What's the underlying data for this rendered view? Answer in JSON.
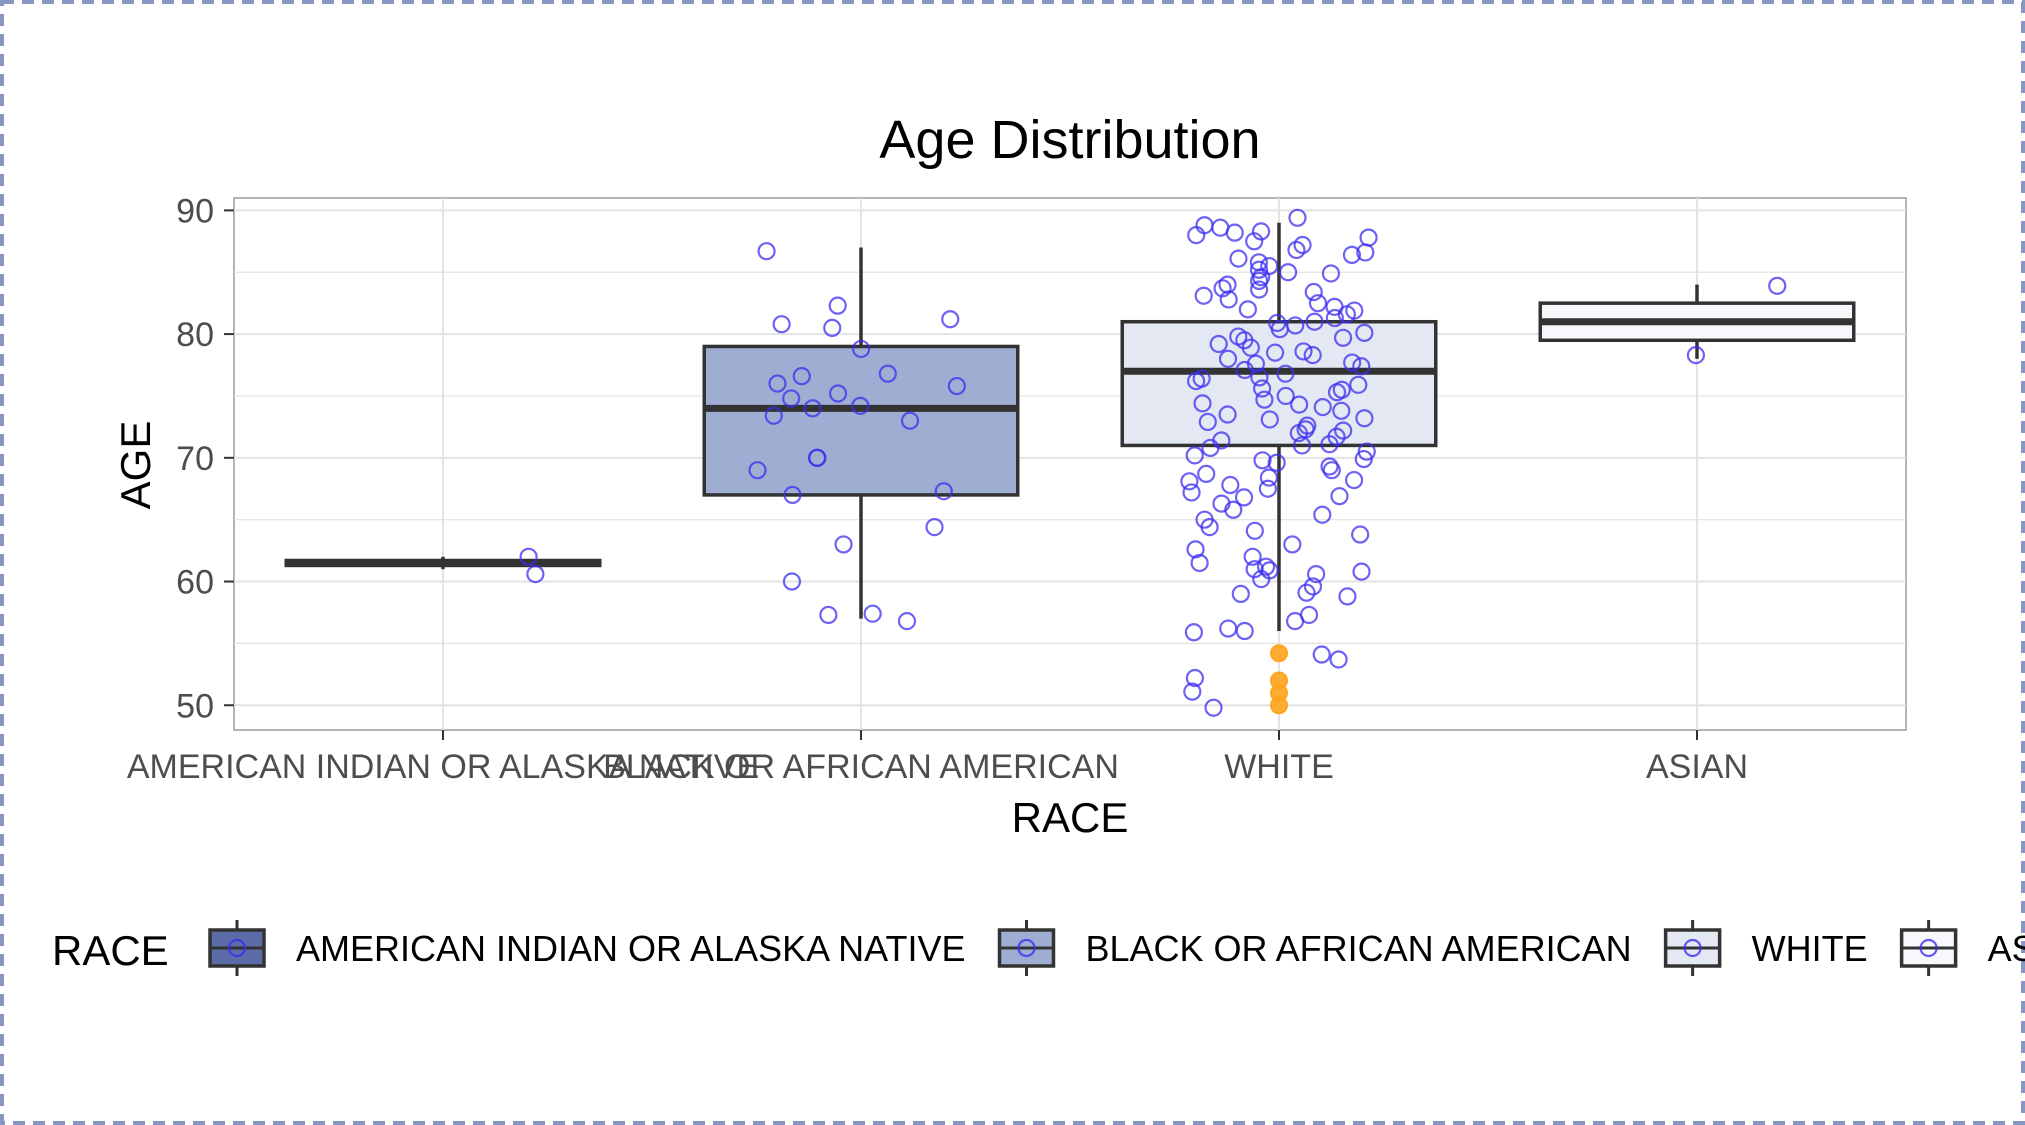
{
  "chart_data": {
    "type": "box",
    "title": "Age Distribution",
    "xlabel": "RACE",
    "ylabel": "AGE",
    "ylim": [
      48,
      91
    ],
    "yticks": [
      50,
      60,
      70,
      80,
      90
    ],
    "grid": true,
    "legend_position": "bottom",
    "legend_title": "RACE",
    "categories": [
      "AMERICAN INDIAN OR ALASKA NATIVE",
      "BLACK OR AFRICAN AMERICAN",
      "WHITE",
      "ASIAN"
    ],
    "colors": {
      "box_fills": [
        "#5b6ca8",
        "#9fadd2",
        "#e4e8f3",
        "#f7f8fb"
      ],
      "box_stroke": "#333333",
      "point": "#3b2ef0",
      "outlier": "#ffa41c",
      "grid": "#e3e3e3",
      "panel_border": "#b3b3b3",
      "frame_border": "#8797c2"
    },
    "boxes": [
      {
        "category": "AMERICAN INDIAN OR ALASKA NATIVE",
        "lower_whisker": 61.0,
        "q1": 61.3,
        "median": 61.5,
        "q3": 61.7,
        "upper_whisker": 62.0
      },
      {
        "category": "BLACK OR AFRICAN AMERICAN",
        "lower_whisker": 57.0,
        "q1": 67.0,
        "median": 74.0,
        "q3": 79.0,
        "upper_whisker": 87.0
      },
      {
        "category": "WHITE",
        "lower_whisker": 56.0,
        "q1": 71.0,
        "median": 77.0,
        "q3": 81.0,
        "upper_whisker": 89.0
      },
      {
        "category": "ASIAN",
        "lower_whisker": 78.0,
        "q1": 79.5,
        "median": 81.0,
        "q3": 82.5,
        "upper_whisker": 84.0
      }
    ],
    "points": [
      {
        "category": "AMERICAN INDIAN OR ALASKA NATIVE",
        "values": [
          62.0,
          60.6
        ]
      },
      {
        "category": "BLACK OR AFRICAN AMERICAN",
        "values": [
          86.7,
          82.3,
          81.2,
          80.8,
          80.5,
          78.8,
          76.8,
          76.6,
          76.0,
          75.8,
          75.2,
          74.8,
          74.2,
          74.0,
          73.4,
          73.0,
          70.0,
          70.0,
          69.0,
          67.3,
          67.0,
          64.4,
          63.0,
          60.0,
          57.4,
          57.3,
          56.8
        ]
      },
      {
        "category": "WHITE",
        "values": [
          89.4,
          88.8,
          88.6,
          88.3,
          88.0,
          87.8,
          87.5,
          87.2,
          86.8,
          86.4,
          86.1,
          85.8,
          85.5,
          85.2,
          84.9,
          84.6,
          84.3,
          84.0,
          83.7,
          83.4,
          83.1,
          82.8,
          82.5,
          82.2,
          81.9,
          81.6,
          81.3,
          81.0,
          80.7,
          80.4,
          80.1,
          79.8,
          79.5,
          79.2,
          78.9,
          78.6,
          78.3,
          78.0,
          77.7,
          77.4,
          77.1,
          76.8,
          76.5,
          76.2,
          75.9,
          75.6,
          75.3,
          75.0,
          74.7,
          74.4,
          74.1,
          73.8,
          73.5,
          73.2,
          72.9,
          72.6,
          72.3,
          72.0,
          71.7,
          71.4,
          71.1,
          70.8,
          70.5,
          70.2,
          69.9,
          69.6,
          69.3,
          69.0,
          68.7,
          68.4,
          68.1,
          67.8,
          67.5,
          67.2,
          66.8,
          66.3,
          65.8,
          65.4,
          65.0,
          64.4,
          63.8,
          63.0,
          62.6,
          62.0,
          61.5,
          61.2,
          61.0,
          60.8,
          60.6,
          60.2,
          59.6,
          59.0,
          58.8,
          57.3,
          56.8,
          56.2,
          56.0,
          55.9,
          53.7,
          52.2,
          51.1,
          49.8,
          88.2,
          86.6,
          85.0,
          83.6,
          82.0,
          80.9,
          79.7,
          78.5,
          77.6,
          76.4,
          75.5,
          74.3,
          73.1,
          72.2,
          71.0,
          69.8,
          68.2,
          66.9,
          64.1,
          60.9,
          59.1,
          54.1
        ]
      },
      {
        "category": "ASIAN",
        "values": [
          83.9,
          78.3
        ]
      }
    ],
    "outliers": [
      {
        "category": "WHITE",
        "values": [
          54.2,
          52.0,
          51.0,
          50.0
        ]
      }
    ]
  }
}
